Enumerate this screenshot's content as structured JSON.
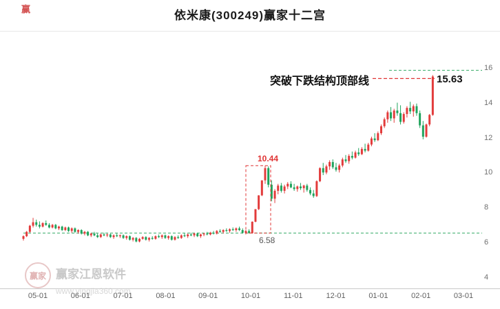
{
  "title": "依米康(300249)赢家十二宫",
  "top_left_mark": "赢",
  "watermark": {
    "logo_text": "赢家",
    "brand": "赢家江恩软件",
    "url": "www.yingjia360.com"
  },
  "chart_data": {
    "type": "candlestick",
    "title": "依米康(300249)赢家十二宫",
    "y_ticks": [
      16,
      14,
      12,
      10,
      8,
      6,
      4
    ],
    "ylim": [
      3.4,
      16.8
    ],
    "x_labels": [
      "05-01",
      "06-01",
      "07-01",
      "08-01",
      "09-01",
      "10-01",
      "11-01",
      "12-01",
      "01-01",
      "02-01",
      "03-01"
    ],
    "up_color": "#e23b3b",
    "down_color": "#1fa35c",
    "grid": false,
    "annotations": {
      "breakout_label": "突破下跌结构顶部线",
      "breakout_price_label": "15.63",
      "breakout_price": 15.63,
      "box_top_label": "10.44",
      "box_top_price": 10.44,
      "box_bottom_label": "6.58",
      "box_bottom_price": 6.58,
      "line_color_red": "#e03434",
      "line_color_green": "#33aa66"
    },
    "candles": [
      [
        6.25,
        6.45,
        6.15,
        6.4
      ],
      [
        6.4,
        6.7,
        6.35,
        6.65
      ],
      [
        6.65,
        7.05,
        6.6,
        7.0
      ],
      [
        7.0,
        7.45,
        6.9,
        7.2
      ],
      [
        7.2,
        7.35,
        6.95,
        7.05
      ],
      [
        7.05,
        7.25,
        6.85,
        6.95
      ],
      [
        6.95,
        7.2,
        6.9,
        7.15
      ],
      [
        7.15,
        7.3,
        7.0,
        7.05
      ],
      [
        7.05,
        7.15,
        6.85,
        6.9
      ],
      [
        6.9,
        7.1,
        6.85,
        7.05
      ],
      [
        7.05,
        7.1,
        6.8,
        6.85
      ],
      [
        6.85,
        7.0,
        6.75,
        6.95
      ],
      [
        6.95,
        7.0,
        6.7,
        6.75
      ],
      [
        6.75,
        6.95,
        6.7,
        6.9
      ],
      [
        6.9,
        6.95,
        6.65,
        6.7
      ],
      [
        6.7,
        6.9,
        6.6,
        6.85
      ],
      [
        6.85,
        6.9,
        6.6,
        6.65
      ],
      [
        6.65,
        6.8,
        6.55,
        6.75
      ],
      [
        6.75,
        6.8,
        6.5,
        6.55
      ],
      [
        6.55,
        6.7,
        6.45,
        6.65
      ],
      [
        6.65,
        6.7,
        6.4,
        6.45
      ],
      [
        6.45,
        6.6,
        6.35,
        6.55
      ],
      [
        6.55,
        6.65,
        6.4,
        6.45
      ],
      [
        6.45,
        6.55,
        6.3,
        6.35
      ],
      [
        6.35,
        6.55,
        6.3,
        6.5
      ],
      [
        6.5,
        6.6,
        6.4,
        6.45
      ],
      [
        6.45,
        6.55,
        6.35,
        6.5
      ],
      [
        6.5,
        6.55,
        6.3,
        6.35
      ],
      [
        6.35,
        6.5,
        6.25,
        6.45
      ],
      [
        6.45,
        6.55,
        6.35,
        6.4
      ],
      [
        6.4,
        6.5,
        6.3,
        6.45
      ],
      [
        6.45,
        6.5,
        6.25,
        6.3
      ],
      [
        6.3,
        6.45,
        6.2,
        6.4
      ],
      [
        6.4,
        6.45,
        6.15,
        6.2
      ],
      [
        6.2,
        6.35,
        6.1,
        6.3
      ],
      [
        6.3,
        6.35,
        6.05,
        6.1
      ],
      [
        6.1,
        6.3,
        6.05,
        6.25
      ],
      [
        6.25,
        6.4,
        6.2,
        6.35
      ],
      [
        6.35,
        6.4,
        6.15,
        6.2
      ],
      [
        6.2,
        6.35,
        6.1,
        6.3
      ],
      [
        6.3,
        6.4,
        6.2,
        6.25
      ],
      [
        6.25,
        6.45,
        6.2,
        6.4
      ],
      [
        6.4,
        6.5,
        6.3,
        6.35
      ],
      [
        6.35,
        6.5,
        6.25,
        6.45
      ],
      [
        6.45,
        6.5,
        6.25,
        6.3
      ],
      [
        6.3,
        6.45,
        6.2,
        6.4
      ],
      [
        6.4,
        6.45,
        6.15,
        6.2
      ],
      [
        6.2,
        6.4,
        6.15,
        6.35
      ],
      [
        6.35,
        6.45,
        6.25,
        6.3
      ],
      [
        6.3,
        6.5,
        6.25,
        6.45
      ],
      [
        6.45,
        6.55,
        6.35,
        6.4
      ],
      [
        6.4,
        6.55,
        6.3,
        6.5
      ],
      [
        6.5,
        6.6,
        6.4,
        6.45
      ],
      [
        6.45,
        6.6,
        6.35,
        6.55
      ],
      [
        6.55,
        6.6,
        6.35,
        6.4
      ],
      [
        6.4,
        6.55,
        6.3,
        6.5
      ],
      [
        6.5,
        6.6,
        6.4,
        6.55
      ],
      [
        6.55,
        6.65,
        6.45,
        6.5
      ],
      [
        6.5,
        6.65,
        6.45,
        6.6
      ],
      [
        6.6,
        6.7,
        6.5,
        6.55
      ],
      [
        6.55,
        6.75,
        6.5,
        6.7
      ],
      [
        6.7,
        6.8,
        6.6,
        6.65
      ],
      [
        6.65,
        6.8,
        6.55,
        6.75
      ],
      [
        6.75,
        6.85,
        6.65,
        6.7
      ],
      [
        6.7,
        6.85,
        6.6,
        6.8
      ],
      [
        6.8,
        6.9,
        6.7,
        6.75
      ],
      [
        6.75,
        6.9,
        6.65,
        6.85
      ],
      [
        6.85,
        6.95,
        6.7,
        6.75
      ],
      [
        6.75,
        6.85,
        6.55,
        6.6
      ],
      [
        6.6,
        6.75,
        6.5,
        6.7
      ],
      [
        6.7,
        6.8,
        6.55,
        6.58
      ],
      [
        6.58,
        7.25,
        6.55,
        7.23
      ],
      [
        7.23,
        7.95,
        7.2,
        7.95
      ],
      [
        7.95,
        8.75,
        7.9,
        8.74
      ],
      [
        8.74,
        9.6,
        8.7,
        9.6
      ],
      [
        9.6,
        10.44,
        9.4,
        10.3
      ],
      [
        10.3,
        10.4,
        9.2,
        9.35
      ],
      [
        9.35,
        9.6,
        8.4,
        8.55
      ],
      [
        8.55,
        9.1,
        8.3,
        9.0
      ],
      [
        9.0,
        9.4,
        8.8,
        9.3
      ],
      [
        9.3,
        9.45,
        8.9,
        9.0
      ],
      [
        9.0,
        9.35,
        8.85,
        9.25
      ],
      [
        9.25,
        9.5,
        9.1,
        9.4
      ],
      [
        9.4,
        9.55,
        9.15,
        9.2
      ],
      [
        9.2,
        9.4,
        9.0,
        9.1
      ],
      [
        9.1,
        9.3,
        8.95,
        9.25
      ],
      [
        9.25,
        9.45,
        9.05,
        9.15
      ],
      [
        9.15,
        9.35,
        8.9,
        9.3
      ],
      [
        9.3,
        9.4,
        8.95,
        9.05
      ],
      [
        9.05,
        9.2,
        8.75,
        8.85
      ],
      [
        8.85,
        9.05,
        8.6,
        8.7
      ],
      [
        8.7,
        9.6,
        8.65,
        9.55
      ],
      [
        9.55,
        10.35,
        9.5,
        10.3
      ],
      [
        10.3,
        10.6,
        9.9,
        10.05
      ],
      [
        10.05,
        10.5,
        9.95,
        10.4
      ],
      [
        10.4,
        10.75,
        10.2,
        10.65
      ],
      [
        10.65,
        10.8,
        10.25,
        10.35
      ],
      [
        10.35,
        10.6,
        10.1,
        10.2
      ],
      [
        10.2,
        10.55,
        10.05,
        10.45
      ],
      [
        10.45,
        10.9,
        10.35,
        10.8
      ],
      [
        10.8,
        11.05,
        10.6,
        10.7
      ],
      [
        10.7,
        11.1,
        10.55,
        11.0
      ],
      [
        11.0,
        11.25,
        10.8,
        10.9
      ],
      [
        10.9,
        11.3,
        10.85,
        11.2
      ],
      [
        11.2,
        11.45,
        11.0,
        11.1
      ],
      [
        11.1,
        11.5,
        11.05,
        11.4
      ],
      [
        11.4,
        11.7,
        11.2,
        11.3
      ],
      [
        11.3,
        11.75,
        11.25,
        11.65
      ],
      [
        11.65,
        12.1,
        11.55,
        12.0
      ],
      [
        12.0,
        12.3,
        11.8,
        11.9
      ],
      [
        11.9,
        12.4,
        11.85,
        12.3
      ],
      [
        12.3,
        12.8,
        12.2,
        12.7
      ],
      [
        12.7,
        13.2,
        12.6,
        13.1
      ],
      [
        13.1,
        13.6,
        12.9,
        13.5
      ],
      [
        13.5,
        13.8,
        13.0,
        13.15
      ],
      [
        13.15,
        13.7,
        12.9,
        13.6
      ],
      [
        13.6,
        14.05,
        13.3,
        13.45
      ],
      [
        13.45,
        13.9,
        12.8,
        12.95
      ],
      [
        12.95,
        13.5,
        12.85,
        13.4
      ],
      [
        13.4,
        13.85,
        13.2,
        13.75
      ],
      [
        13.75,
        14.1,
        13.4,
        13.55
      ],
      [
        13.55,
        13.95,
        13.25,
        13.85
      ],
      [
        13.85,
        14.0,
        13.3,
        13.45
      ],
      [
        13.45,
        13.6,
        12.6,
        12.75
      ],
      [
        12.75,
        13.0,
        11.95,
        12.1
      ],
      [
        12.1,
        12.85,
        12.05,
        12.8
      ],
      [
        12.8,
        13.4,
        12.7,
        13.35
      ],
      [
        13.35,
        15.63,
        13.3,
        15.55
      ]
    ]
  }
}
